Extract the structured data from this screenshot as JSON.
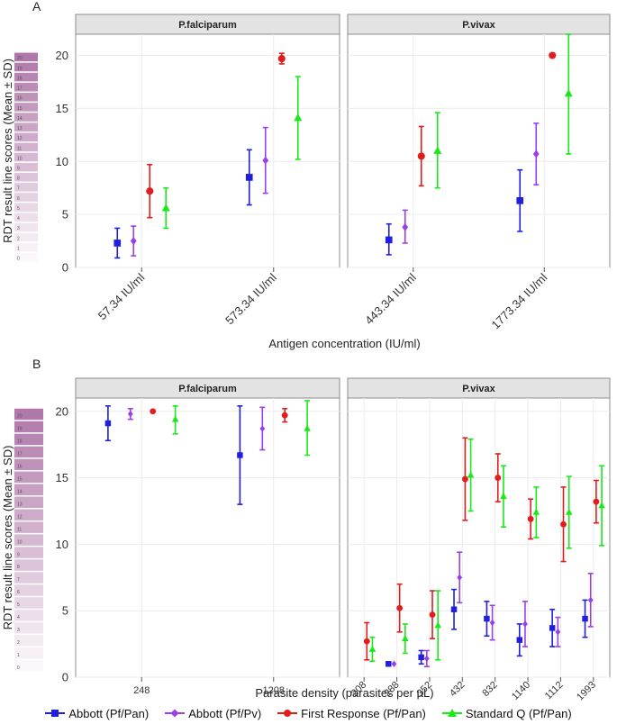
{
  "panel_a_label": "A",
  "panel_b_label": "B",
  "colors": {
    "abbott_pf_pan": "#1f1fdd",
    "abbott_pf_pv": "#9b3fe6",
    "first_response": "#e11d1d",
    "standard_q": "#19e819",
    "strip_bg": "#e3e3e3",
    "grid": "#ececec",
    "border": "#8c8c8c"
  },
  "legend": [
    {
      "name": "Abbott (Pf/Pan)",
      "color": "#1f1fdd",
      "shape": "square"
    },
    {
      "name": "Abbott (Pf/Pv)",
      "color": "#9b3fe6",
      "shape": "diamond"
    },
    {
      "name": "First Response (Pf/Pan)",
      "color": "#e11d1d",
      "shape": "circle"
    },
    {
      "name": "Standard Q (Pf/Pan)",
      "color": "#19e819",
      "shape": "triangle"
    }
  ],
  "chart_data": [
    {
      "type": "scatter",
      "id": "A",
      "title": "A",
      "ylabel": "RDT result line scores (Mean ± SD)",
      "xlabel": "Antigen concentration (IU/ml)",
      "ylim": [
        0,
        22
      ],
      "yticks": [
        0,
        5,
        10,
        15,
        20
      ],
      "scale_ticks": [
        "0",
        "1",
        "2",
        "3",
        "4",
        "5",
        "6",
        "7",
        "8",
        "9",
        "10",
        "11",
        "12",
        "13",
        "14",
        "15",
        "16",
        "17",
        "18",
        "19",
        "20"
      ],
      "facets": [
        {
          "title": "P.falciparum",
          "categories": [
            "57.34 IU/ml",
            "573.34 IU/ml"
          ],
          "series": [
            {
              "name": "Abbott (Pf/Pan)",
              "mean": [
                2.3,
                8.5
              ],
              "lower": [
                0.9,
                5.9
              ],
              "upper": [
                3.7,
                11.1
              ]
            },
            {
              "name": "Abbott (Pf/Pv)",
              "mean": [
                2.5,
                10.1
              ],
              "lower": [
                1.1,
                7.0
              ],
              "upper": [
                3.9,
                13.2
              ]
            },
            {
              "name": "First Response (Pf/Pan)",
              "mean": [
                7.2,
                19.7
              ],
              "lower": [
                4.7,
                19.2
              ],
              "upper": [
                9.7,
                20.2
              ]
            },
            {
              "name": "Standard Q (Pf/Pan)",
              "mean": [
                5.6,
                14.1
              ],
              "lower": [
                3.7,
                10.2
              ],
              "upper": [
                7.5,
                18.0
              ]
            }
          ]
        },
        {
          "title": "P.vivax",
          "categories": [
            "443.34 IU/ml",
            "1773.34 IU/ml"
          ],
          "series": [
            {
              "name": "Abbott (Pf/Pan)",
              "mean": [
                2.6,
                6.3
              ],
              "lower": [
                1.2,
                3.4
              ],
              "upper": [
                4.1,
                9.2
              ]
            },
            {
              "name": "Abbott (Pf/Pv)",
              "mean": [
                3.8,
                10.7
              ],
              "lower": [
                2.3,
                7.8
              ],
              "upper": [
                5.4,
                13.6
              ]
            },
            {
              "name": "First Response (Pf/Pan)",
              "mean": [
                10.5,
                20.0
              ],
              "lower": [
                7.7,
                20.0
              ],
              "upper": [
                13.3,
                20.0
              ]
            },
            {
              "name": "Standard Q (Pf/Pan)",
              "mean": [
                11.0,
                16.4
              ],
              "lower": [
                7.5,
                10.7
              ],
              "upper": [
                14.6,
                22.0
              ]
            }
          ]
        }
      ]
    },
    {
      "type": "scatter",
      "id": "B",
      "title": "B",
      "ylabel": "RDT result line scores (Mean ± SD)",
      "xlabel": "Parasite density (parasites per µL)",
      "ylim": [
        0,
        21
      ],
      "yticks": [
        0,
        5,
        10,
        15,
        20
      ],
      "scale_ticks": [
        "0",
        "1",
        "2",
        "3",
        "4",
        "5",
        "6",
        "7",
        "8",
        "9",
        "10",
        "11",
        "12",
        "13",
        "14",
        "15",
        "16",
        "17",
        "18",
        "19",
        "20"
      ],
      "facets": [
        {
          "title": "P.falciparum",
          "categories": [
            "248",
            "1208"
          ],
          "series": [
            {
              "name": "Abbott (Pf/Pan)",
              "mean": [
                19.1,
                16.7
              ],
              "lower": [
                17.8,
                13.0
              ],
              "upper": [
                20.4,
                20.4
              ]
            },
            {
              "name": "Abbott (Pf/Pv)",
              "mean": [
                19.8,
                18.7
              ],
              "lower": [
                19.4,
                17.1
              ],
              "upper": [
                20.2,
                20.3
              ]
            },
            {
              "name": "First Response (Pf/Pan)",
              "mean": [
                20.0,
                19.7
              ],
              "lower": [
                20.0,
                19.2
              ],
              "upper": [
                20.0,
                20.2
              ]
            },
            {
              "name": "Standard Q (Pf/Pan)",
              "mean": [
                19.4,
                18.7
              ],
              "lower": [
                18.3,
                16.7
              ],
              "upper": [
                20.4,
                20.8
              ]
            }
          ]
        },
        {
          "title": "P.vivax",
          "categories": [
            "208",
            "288",
            "352",
            "432",
            "832",
            "1140",
            "1112",
            "1993"
          ],
          "series": [
            {
              "name": "Abbott (Pf/Pan)",
              "mean": [
                null,
                1.0,
                1.5,
                5.1,
                4.4,
                2.8,
                3.7,
                4.4
              ],
              "lower": [
                null,
                1.0,
                1.0,
                3.6,
                3.1,
                1.6,
                2.3,
                3.0
              ],
              "upper": [
                null,
                1.0,
                2.0,
                6.6,
                5.7,
                4.0,
                5.1,
                5.8
              ]
            },
            {
              "name": "Abbott (Pf/Pv)",
              "mean": [
                null,
                1.0,
                1.4,
                7.5,
                4.1,
                4.0,
                3.4,
                5.8
              ],
              "lower": [
                null,
                1.0,
                0.8,
                5.6,
                2.8,
                2.3,
                2.3,
                3.8
              ],
              "upper": [
                null,
                1.0,
                2.0,
                9.4,
                5.4,
                5.7,
                4.5,
                7.8
              ]
            },
            {
              "name": "First Response (Pf/Pan)",
              "mean": [
                2.7,
                5.2,
                4.7,
                14.9,
                15.0,
                11.9,
                11.5,
                13.2
              ],
              "lower": [
                1.3,
                3.4,
                2.9,
                11.8,
                13.2,
                10.4,
                8.7,
                11.6
              ],
              "upper": [
                4.1,
                7.0,
                6.5,
                18.0,
                16.8,
                13.4,
                14.3,
                14.8
              ]
            },
            {
              "name": "Standard Q (Pf/Pan)",
              "mean": [
                2.1,
                2.9,
                3.9,
                15.2,
                13.6,
                12.4,
                12.4,
                12.9
              ],
              "lower": [
                1.2,
                1.8,
                1.3,
                12.5,
                11.3,
                10.5,
                9.7,
                9.9
              ],
              "upper": [
                3.0,
                4.0,
                6.5,
                17.9,
                15.9,
                14.3,
                15.1,
                15.9
              ]
            }
          ]
        }
      ]
    }
  ]
}
